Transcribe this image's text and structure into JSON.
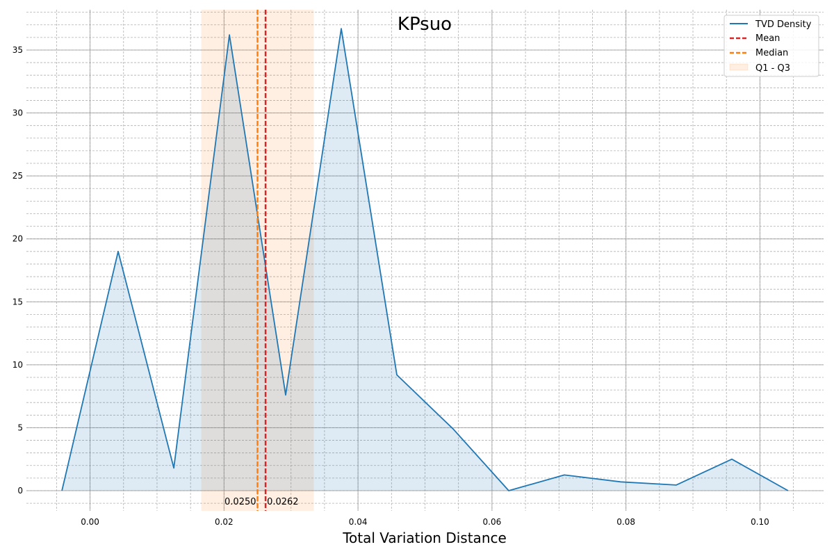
{
  "chart_data": {
    "type": "area",
    "title": "KPsuo",
    "xlabel": "Total Variation Distance",
    "ylabel": "",
    "xlim": [
      -0.0095,
      0.1095
    ],
    "ylim": [
      -1.6,
      38.2
    ],
    "x_ticks": [
      0.0,
      0.02,
      0.04,
      0.06,
      0.08,
      0.1
    ],
    "x_tick_labels": [
      "0.00",
      "0.02",
      "0.04",
      "0.06",
      "0.08",
      "0.10"
    ],
    "y_ticks": [
      0,
      5,
      10,
      15,
      20,
      25,
      30,
      35
    ],
    "y_tick_labels": [
      "0",
      "5",
      "10",
      "15",
      "20",
      "25",
      "30",
      "35"
    ],
    "grid": true,
    "legend_position": "top-right",
    "series": [
      {
        "name": "TVD Density",
        "color": "#1f77b4",
        "x": [
          -0.0042,
          0.0042,
          0.0125,
          0.0208,
          0.0292,
          0.0375,
          0.0458,
          0.0542,
          0.0625,
          0.0708,
          0.0792,
          0.0875,
          0.0958,
          0.1042
        ],
        "y": [
          0.0,
          19.0,
          1.8,
          36.2,
          7.6,
          36.7,
          9.2,
          4.9,
          0.0,
          1.25,
          0.7,
          0.45,
          2.5,
          0.0
        ]
      }
    ],
    "mean": {
      "name": "Mean",
      "value": 0.0262,
      "label": "0.0262",
      "color": "#d62728"
    },
    "median": {
      "name": "Median",
      "value": 0.025,
      "label": "0.0250",
      "color": "#ff7f0e"
    },
    "iqr": {
      "name": "Q1 - Q3",
      "q1": 0.0166,
      "q3": 0.0334,
      "color": "#ff7f0e"
    }
  }
}
